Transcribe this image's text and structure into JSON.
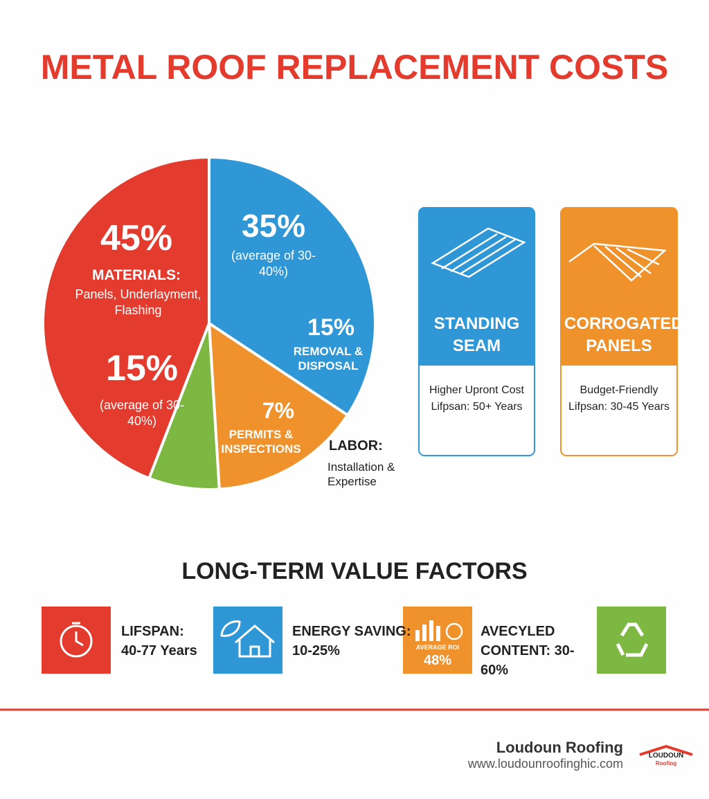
{
  "title": "METAL ROOF REPLACEMENT COSTS",
  "chart_data": {
    "type": "pie",
    "categories": [
      "LABOR:",
      "REMOVAL & DISPOSAL",
      "PERMITS & INSPECTIONS",
      "MATERIALS:"
    ],
    "values": [
      35,
      15,
      7,
      45
    ],
    "value_labels": [
      "35%",
      "15%",
      "7%",
      "45%"
    ],
    "colors": [
      "#2f97d6",
      "#f0922c",
      "#7cb842",
      "#e33b2e"
    ],
    "annotations": [
      "Panels, Underlayment, Flashing",
      "15%",
      "(average of 30-40%)",
      "(average of 30-40%)",
      "Installation & Expertise"
    ]
  },
  "cards": [
    {
      "title": "STANDING SEAM",
      "lines": [
        "Higher Upront Cost",
        "Lifpsan: 50+ Years"
      ]
    },
    {
      "title": "CORROGATED PANELS",
      "lines": [
        "Budget-Friendly",
        "Lifpsan: 30-45 Years"
      ]
    }
  ],
  "factors": {
    "heading": "LONG-TERM VALUE FACTORS",
    "items": [
      {
        "label": "LIFSPAN:",
        "value": "40-77 Years"
      },
      {
        "label": "ENERGY SAVING:",
        "value": "10-25%"
      },
      {
        "icon_label": "AVERAGE ROI",
        "icon_value": "48%"
      },
      {
        "label": "AVECYLED CONTENT: 30-60%"
      }
    ]
  },
  "footer": {
    "company": "Loudoun Roofing",
    "url": "www.loudounroofinghic.com",
    "logo_name": "LOUDOUN",
    "logo_sub": "Roofing"
  }
}
